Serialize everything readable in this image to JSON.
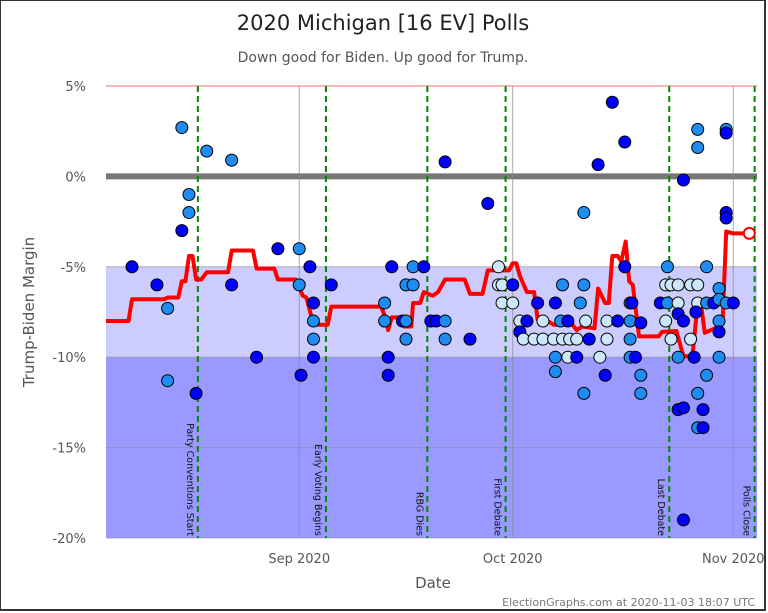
{
  "chart_data": {
    "type": "scatter",
    "title": "2020 Michigan [16 EV] Polls",
    "subtitle": "Down good for Biden. Up good for Trump.",
    "xlabel": "Date",
    "ylabel": "Trump-Biden Margin",
    "footer": "ElectionGraphs.com at 2020-11-03 18:07 UTC",
    "xlim": [
      "2020-07-30T12",
      "2020-11-04T08"
    ],
    "ylim": [
      -20,
      5
    ],
    "x_ticks": [
      {
        "date": "2020-09-01",
        "label": "Sep 2020"
      },
      {
        "date": "2020-10-01",
        "label": "Oct 2020"
      },
      {
        "date": "2020-11-01",
        "label": "Nov 2020"
      }
    ],
    "y_ticks": [
      {
        "value": 5,
        "label": "5%"
      },
      {
        "value": 0,
        "label": "0%"
      },
      {
        "value": -5,
        "label": "-5%"
      },
      {
        "value": -10,
        "label": "-10%"
      },
      {
        "value": -15,
        "label": "-15%"
      },
      {
        "value": -20,
        "label": "-20%"
      }
    ],
    "bands": [
      {
        "from": -10,
        "to": -5,
        "color": "#ccccff"
      },
      {
        "from": -20,
        "to": -10,
        "color": "#9999ff"
      }
    ],
    "grid": true,
    "events": [
      {
        "date": "2020-08-17T18",
        "label": "Party Conventions Start"
      },
      {
        "date": "2020-09-04T18",
        "label": "Early Voting Begins"
      },
      {
        "date": "2020-09-19",
        "label": "RBG Dies"
      },
      {
        "date": "2020-09-30",
        "label": "First Debate"
      },
      {
        "date": "2020-10-23",
        "label": "Last Debate"
      },
      {
        "date": "2020-11-04",
        "label": "Polls Close"
      }
    ],
    "colors": {
      "d": "#0000ff",
      "m": "#1e8cf0",
      "l": "#cce6fa",
      "average": "#ff0000",
      "event": "#008800",
      "zero": "#777777"
    },
    "polls": [
      [
        "2020-08-08T12",
        -5,
        "d"
      ],
      [
        "2020-08-12",
        -6,
        "d"
      ],
      [
        "2020-08-13T12",
        -7.3,
        "m"
      ],
      [
        "2020-08-13T12",
        -11.3,
        "m"
      ],
      [
        "2020-08-15T12",
        2.7,
        "m"
      ],
      [
        "2020-08-15T12",
        -3,
        "d"
      ],
      [
        "2020-08-16T12",
        -1,
        "m"
      ],
      [
        "2020-08-16T12",
        -2,
        "m"
      ],
      [
        "2020-08-17T12",
        -12,
        "d"
      ],
      [
        "2020-08-19",
        1.4,
        "m"
      ],
      [
        "2020-08-22T12",
        0.9,
        "m"
      ],
      [
        "2020-08-22T12",
        -6,
        "d"
      ],
      [
        "2020-08-26",
        -10,
        "d"
      ],
      [
        "2020-08-29",
        -4,
        "d"
      ],
      [
        "2020-09-01",
        -4,
        "m"
      ],
      [
        "2020-09-01",
        -6,
        "m"
      ],
      [
        "2020-09-01T06",
        -11,
        "d"
      ],
      [
        "2020-09-02T12",
        -5,
        "d"
      ],
      [
        "2020-09-03",
        -7,
        "d"
      ],
      [
        "2020-09-03",
        -8,
        "m"
      ],
      [
        "2020-09-03",
        -9,
        "m"
      ],
      [
        "2020-09-03",
        -10,
        "d"
      ],
      [
        "2020-09-05T12",
        -6,
        "d"
      ],
      [
        "2020-09-13",
        -7,
        "m"
      ],
      [
        "2020-09-13",
        -8,
        "m"
      ],
      [
        "2020-09-13T12",
        -10,
        "d"
      ],
      [
        "2020-09-13T12",
        -11,
        "d"
      ],
      [
        "2020-09-14",
        -5,
        "d"
      ],
      [
        "2020-09-15T12",
        -8,
        "d"
      ],
      [
        "2020-09-16",
        -8,
        "m"
      ],
      [
        "2020-09-16",
        -9,
        "m"
      ],
      [
        "2020-09-16",
        -6,
        "m"
      ],
      [
        "2020-09-17",
        -6,
        "m"
      ],
      [
        "2020-09-17",
        -5,
        "m"
      ],
      [
        "2020-09-18T12",
        -5,
        "d"
      ],
      [
        "2020-09-19T12",
        -8,
        "d"
      ],
      [
        "2020-09-20T06",
        -8,
        "d"
      ],
      [
        "2020-09-21T12",
        -8,
        "m"
      ],
      [
        "2020-09-21T12",
        -9,
        "m"
      ],
      [
        "2020-09-21T12",
        0.8,
        "d"
      ],
      [
        "2020-09-25",
        -9,
        "d"
      ],
      [
        "2020-09-27T12",
        -1.5,
        "d"
      ],
      [
        "2020-09-29",
        -5,
        "l"
      ],
      [
        "2020-09-29",
        -6,
        "l"
      ],
      [
        "2020-09-29T12",
        -6,
        "l"
      ],
      [
        "2020-09-29T12",
        -7,
        "l"
      ],
      [
        "2020-10-01",
        -6,
        "d"
      ],
      [
        "2020-10-01",
        -7,
        "l"
      ],
      [
        "2020-10-02",
        -8,
        "l"
      ],
      [
        "2020-10-02",
        -8.6,
        "d"
      ],
      [
        "2020-10-02T12",
        -9,
        "l"
      ],
      [
        "2020-10-03",
        -8,
        "d"
      ],
      [
        "2020-10-04",
        -9,
        "l"
      ],
      [
        "2020-10-04T12",
        -7,
        "d"
      ],
      [
        "2020-10-05T06",
        -8,
        "l"
      ],
      [
        "2020-10-05T06",
        -9,
        "l"
      ],
      [
        "2020-10-06T18",
        -9,
        "l"
      ],
      [
        "2020-10-07",
        -7,
        "d"
      ],
      [
        "2020-10-07",
        -10,
        "m"
      ],
      [
        "2020-10-07",
        -10.8,
        "m"
      ],
      [
        "2020-10-07T18",
        -8,
        "m"
      ],
      [
        "2020-10-08",
        -6,
        "m"
      ],
      [
        "2020-10-08",
        -9,
        "l"
      ],
      [
        "2020-10-08T18",
        -10,
        "l"
      ],
      [
        "2020-10-08T18",
        -8,
        "d"
      ],
      [
        "2020-10-09",
        -9,
        "l"
      ],
      [
        "2020-10-10",
        -10,
        "d"
      ],
      [
        "2020-10-10",
        -9,
        "l"
      ],
      [
        "2020-10-10T12",
        -7,
        "m"
      ],
      [
        "2020-10-11",
        -6,
        "m"
      ],
      [
        "2020-10-11",
        -12,
        "m"
      ],
      [
        "2020-10-11",
        -2,
        "m"
      ],
      [
        "2020-10-11T06",
        -8,
        "l"
      ],
      [
        "2020-10-11T18",
        -9,
        "d"
      ],
      [
        "2020-10-13",
        0.65,
        "d"
      ],
      [
        "2020-10-13T06",
        -10,
        "l"
      ],
      [
        "2020-10-14",
        -11,
        "d"
      ],
      [
        "2020-10-14T06",
        -8,
        "l"
      ],
      [
        "2020-10-14T06",
        -9,
        "l"
      ],
      [
        "2020-10-15",
        4.1,
        "d"
      ],
      [
        "2020-10-15T18",
        -8,
        "d"
      ],
      [
        "2020-10-16T18",
        1.9,
        "d"
      ],
      [
        "2020-10-16T18",
        -5,
        "d"
      ],
      [
        "2020-10-17T12",
        -7,
        "m"
      ],
      [
        "2020-10-17T18",
        -7,
        "d"
      ],
      [
        "2020-10-17T12",
        -8,
        "m"
      ],
      [
        "2020-10-17T12",
        -9,
        "m"
      ],
      [
        "2020-10-17T12",
        -10,
        "m"
      ],
      [
        "2020-10-18T06",
        -10,
        "d"
      ],
      [
        "2020-10-19",
        -8.1,
        "d"
      ],
      [
        "2020-10-19",
        -11,
        "m"
      ],
      [
        "2020-10-19",
        -12,
        "m"
      ],
      [
        "2020-10-21T18",
        -7,
        "d"
      ],
      [
        "2020-10-22T12",
        -6,
        "l"
      ],
      [
        "2020-10-22T12",
        -8,
        "l"
      ],
      [
        "2020-10-22T18",
        -5,
        "m"
      ],
      [
        "2020-10-22T18",
        -7,
        "m"
      ],
      [
        "2020-10-23T06",
        -6,
        "l"
      ],
      [
        "2020-10-23T06",
        -9,
        "l"
      ],
      [
        "2020-10-24T06",
        -6,
        "l"
      ],
      [
        "2020-10-24T06",
        -7,
        "l"
      ],
      [
        "2020-10-24T06",
        -7.6,
        "d"
      ],
      [
        "2020-10-24T06",
        -10,
        "m"
      ],
      [
        "2020-10-24T06",
        -12.9,
        "d"
      ],
      [
        "2020-10-25",
        -12.8,
        "d"
      ],
      [
        "2020-10-25",
        -8,
        "d"
      ],
      [
        "2020-10-25",
        -0.2,
        "d"
      ],
      [
        "2020-10-25",
        -19,
        "d"
      ],
      [
        "2020-10-26",
        -6,
        "l"
      ],
      [
        "2020-10-26",
        -9,
        "l"
      ],
      [
        "2020-10-26T12",
        -10,
        "d"
      ],
      [
        "2020-10-27",
        -6,
        "l"
      ],
      [
        "2020-10-27",
        -7,
        "l"
      ],
      [
        "2020-10-27",
        2.6,
        "m"
      ],
      [
        "2020-10-27",
        1.6,
        "m"
      ],
      [
        "2020-10-27",
        -12,
        "m"
      ],
      [
        "2020-10-27",
        -13.9,
        "m"
      ],
      [
        "2020-10-26T18",
        -7.5,
        "d"
      ],
      [
        "2020-10-27T18",
        -12.9,
        "d"
      ],
      [
        "2020-10-27T18",
        -13.9,
        "d"
      ],
      [
        "2020-10-28T06",
        -5,
        "m"
      ],
      [
        "2020-10-28T06",
        -7,
        "m"
      ],
      [
        "2020-10-28T06",
        -11,
        "m"
      ],
      [
        "2020-10-29T06",
        -7,
        "d"
      ],
      [
        "2020-10-30",
        -8,
        "m"
      ],
      [
        "2020-10-30",
        -8.6,
        "d"
      ],
      [
        "2020-10-30",
        -10,
        "m"
      ],
      [
        "2020-10-30",
        -6.2,
        "m"
      ],
      [
        "2020-10-30",
        -6.8,
        "m"
      ],
      [
        "2020-10-31",
        2.6,
        "m"
      ],
      [
        "2020-10-31",
        2.4,
        "d"
      ],
      [
        "2020-10-31",
        -2,
        "d"
      ],
      [
        "2020-10-31",
        -2.3,
        "d"
      ],
      [
        "2020-10-31",
        -7,
        "m"
      ],
      [
        "2020-11-01",
        -7,
        "d"
      ]
    ],
    "average": [
      [
        "2020-07-30T12",
        -8.0
      ],
      [
        "2020-08-08",
        -8.0
      ],
      [
        "2020-08-08T12",
        -6.8
      ],
      [
        "2020-08-13",
        -6.8
      ],
      [
        "2020-08-13T12",
        -6.7
      ],
      [
        "2020-08-15",
        -6.7
      ],
      [
        "2020-08-15T12",
        -5.8
      ],
      [
        "2020-08-16",
        -5.8
      ],
      [
        "2020-08-16T12",
        -4.4
      ],
      [
        "2020-08-17",
        -4.4
      ],
      [
        "2020-08-17T12",
        -5.7
      ],
      [
        "2020-08-18T06",
        -5.7
      ],
      [
        "2020-08-19",
        -5.3
      ],
      [
        "2020-08-22",
        -5.3
      ],
      [
        "2020-08-22T12",
        -4.1
      ],
      [
        "2020-08-25T12",
        -4.1
      ],
      [
        "2020-08-26",
        -5.1
      ],
      [
        "2020-08-28T12",
        -5.1
      ],
      [
        "2020-08-29",
        -5.7
      ],
      [
        "2020-08-31T12",
        -5.7
      ],
      [
        "2020-09-01T12",
        -6.6
      ],
      [
        "2020-09-02",
        -6.7
      ],
      [
        "2020-09-03",
        -8.2
      ],
      [
        "2020-09-05",
        -8.2
      ],
      [
        "2020-09-05T12",
        -7.2
      ],
      [
        "2020-09-12T12",
        -7.2
      ],
      [
        "2020-09-13",
        -7.7
      ],
      [
        "2020-09-13T12",
        -8.5
      ],
      [
        "2020-09-14",
        -7.8
      ],
      [
        "2020-09-15T06",
        -7.8
      ],
      [
        "2020-09-15T18",
        -8.3
      ],
      [
        "2020-09-16T18",
        -8.3
      ],
      [
        "2020-09-17",
        -7.0
      ],
      [
        "2020-09-18",
        -7.0
      ],
      [
        "2020-09-18T12",
        -6.4
      ],
      [
        "2020-09-19T18",
        -6.6
      ],
      [
        "2020-09-20T12",
        -6.4
      ],
      [
        "2020-09-21T12",
        -5.7
      ],
      [
        "2020-09-24T06",
        -5.7
      ],
      [
        "2020-09-25",
        -6.5
      ],
      [
        "2020-09-26T18",
        -6.5
      ],
      [
        "2020-09-27T12",
        -5.2
      ],
      [
        "2020-09-30T12",
        -5.2
      ],
      [
        "2020-10-01",
        -4.8
      ],
      [
        "2020-10-01T12",
        -4.8
      ],
      [
        "2020-10-02",
        -5.5
      ],
      [
        "2020-10-03",
        -6.4
      ],
      [
        "2020-10-04",
        -6.4
      ],
      [
        "2020-10-04T12",
        -7.9
      ],
      [
        "2020-10-05T12",
        -7.9
      ],
      [
        "2020-10-06T18",
        -8.2
      ],
      [
        "2020-10-08T06",
        -8.2
      ],
      [
        "2020-10-09",
        -8.0
      ],
      [
        "2020-10-10",
        -8.5
      ],
      [
        "2020-10-10T18",
        -8.3
      ],
      [
        "2020-10-12T12",
        -8.4
      ],
      [
        "2020-10-13",
        -6.2
      ],
      [
        "2020-10-14",
        -7.0
      ],
      [
        "2020-10-14T12",
        -7.0
      ],
      [
        "2020-10-15",
        -4.4
      ],
      [
        "2020-10-15T18",
        -4.4
      ],
      [
        "2020-10-16T06",
        -4.7
      ],
      [
        "2020-10-16T21",
        -3.6
      ],
      [
        "2020-10-17T09",
        -5.8
      ],
      [
        "2020-10-17T21",
        -6.0
      ],
      [
        "2020-10-18T18",
        -8.85
      ],
      [
        "2020-10-21T12",
        -8.85
      ],
      [
        "2020-10-22",
        -8.6
      ],
      [
        "2020-10-24",
        -8.55
      ],
      [
        "2020-10-24T18",
        -9.6
      ],
      [
        "2020-10-25",
        -9.95
      ],
      [
        "2020-10-26T06",
        -9.95
      ],
      [
        "2020-10-27",
        -7.0
      ],
      [
        "2020-10-27T12",
        -7.2
      ],
      [
        "2020-10-28",
        -8.65
      ],
      [
        "2020-10-30",
        -8.3
      ],
      [
        "2020-10-30T12",
        -8.1
      ],
      [
        "2020-10-31",
        -3.05
      ],
      [
        "2020-11-01",
        -3.15
      ],
      [
        "2020-11-03T06",
        -3.15
      ]
    ]
  }
}
